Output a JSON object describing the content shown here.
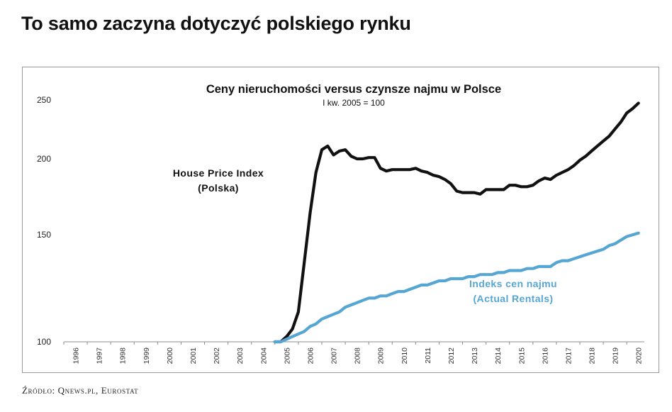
{
  "headline": "To samo zaczyna dotyczyć polskiego rynku",
  "source": "Źródło: Qnews.pl, Eurostat",
  "chart_data": {
    "type": "line",
    "title": "Ceny nieruchomości versus czynsze najmu w Polsce",
    "subtitle": "I kw. 2005 = 100",
    "xlabel": "",
    "ylabel": "",
    "yscale": "log",
    "ylim": [
      100,
      250
    ],
    "xlim": [
      1996,
      2020.75
    ],
    "yticks": [
      100,
      150,
      200,
      250
    ],
    "xticks": [
      "1996",
      "1997",
      "1998",
      "1999",
      "2000",
      "2001",
      "2002",
      "2003",
      "2004",
      "2005",
      "2006",
      "2007",
      "2008",
      "2009",
      "2010",
      "2011",
      "2012",
      "2013",
      "2014",
      "2015",
      "2016",
      "2017",
      "2018",
      "2019",
      "2020"
    ],
    "grid": false,
    "legend": "inline labels",
    "series": [
      {
        "name": "House Price Index (Polska)",
        "color": "#111111",
        "x": [
          2005.0,
          2005.25,
          2005.5,
          2005.75,
          2006.0,
          2006.25,
          2006.5,
          2006.75,
          2007.0,
          2007.25,
          2007.5,
          2007.75,
          2008.0,
          2008.25,
          2008.5,
          2008.75,
          2009.0,
          2009.25,
          2009.5,
          2009.75,
          2010.0,
          2010.25,
          2010.5,
          2010.75,
          2011.0,
          2011.25,
          2011.5,
          2011.75,
          2012.0,
          2012.25,
          2012.5,
          2012.75,
          2013.0,
          2013.25,
          2013.5,
          2013.75,
          2014.0,
          2014.25,
          2014.5,
          2014.75,
          2015.0,
          2015.25,
          2015.5,
          2015.75,
          2016.0,
          2016.25,
          2016.5,
          2016.75,
          2017.0,
          2017.25,
          2017.5,
          2017.75,
          2018.0,
          2018.25,
          2018.5,
          2018.75,
          2019.0,
          2019.25,
          2019.5,
          2019.75,
          2020.0,
          2020.25,
          2020.5
        ],
        "values": [
          100,
          100,
          102,
          105,
          112,
          135,
          163,
          190,
          207,
          210,
          203,
          206,
          207,
          202,
          200,
          200,
          201,
          201,
          193,
          191,
          192,
          192,
          192,
          192,
          193,
          191,
          190,
          188,
          187,
          185,
          182,
          177,
          176,
          176,
          176,
          175,
          178,
          178,
          178,
          178,
          181,
          181,
          180,
          180,
          181,
          184,
          186,
          185,
          188,
          190,
          192,
          195,
          199,
          202,
          206,
          210,
          214,
          218,
          224,
          230,
          238,
          242,
          247
        ]
      },
      {
        "name": "Indeks cen najmu (Actual Rentals)",
        "color": "#56a6d4",
        "x": [
          2005.0,
          2005.25,
          2005.5,
          2005.75,
          2006.0,
          2006.25,
          2006.5,
          2006.75,
          2007.0,
          2007.25,
          2007.5,
          2007.75,
          2008.0,
          2008.25,
          2008.5,
          2008.75,
          2009.0,
          2009.25,
          2009.5,
          2009.75,
          2010.0,
          2010.25,
          2010.5,
          2010.75,
          2011.0,
          2011.25,
          2011.5,
          2011.75,
          2012.0,
          2012.25,
          2012.5,
          2012.75,
          2013.0,
          2013.25,
          2013.5,
          2013.75,
          2014.0,
          2014.25,
          2014.5,
          2014.75,
          2015.0,
          2015.25,
          2015.5,
          2015.75,
          2016.0,
          2016.25,
          2016.5,
          2016.75,
          2017.0,
          2017.25,
          2017.5,
          2017.75,
          2018.0,
          2018.25,
          2018.5,
          2018.75,
          2019.0,
          2019.25,
          2019.5,
          2019.75,
          2020.0,
          2020.25,
          2020.5
        ],
        "values": [
          100,
          100,
          101,
          102,
          103,
          104,
          106,
          107,
          109,
          110,
          111,
          112,
          114,
          115,
          116,
          117,
          118,
          118,
          119,
          119,
          120,
          121,
          121,
          122,
          123,
          124,
          124,
          125,
          126,
          126,
          127,
          127,
          127,
          128,
          128,
          129,
          129,
          129,
          130,
          130,
          131,
          131,
          131,
          132,
          132,
          133,
          133,
          133,
          135,
          136,
          136,
          137,
          138,
          139,
          140,
          141,
          142,
          144,
          145,
          147,
          149,
          150,
          151
        ]
      }
    ],
    "annotations": [
      {
        "line1": "House Price Index",
        "line2": "(Polska)",
        "color": "#111111"
      },
      {
        "line1": "Indeks cen najmu",
        "line2": "(Actual Rentals)",
        "color": "#56a6d4"
      }
    ]
  }
}
